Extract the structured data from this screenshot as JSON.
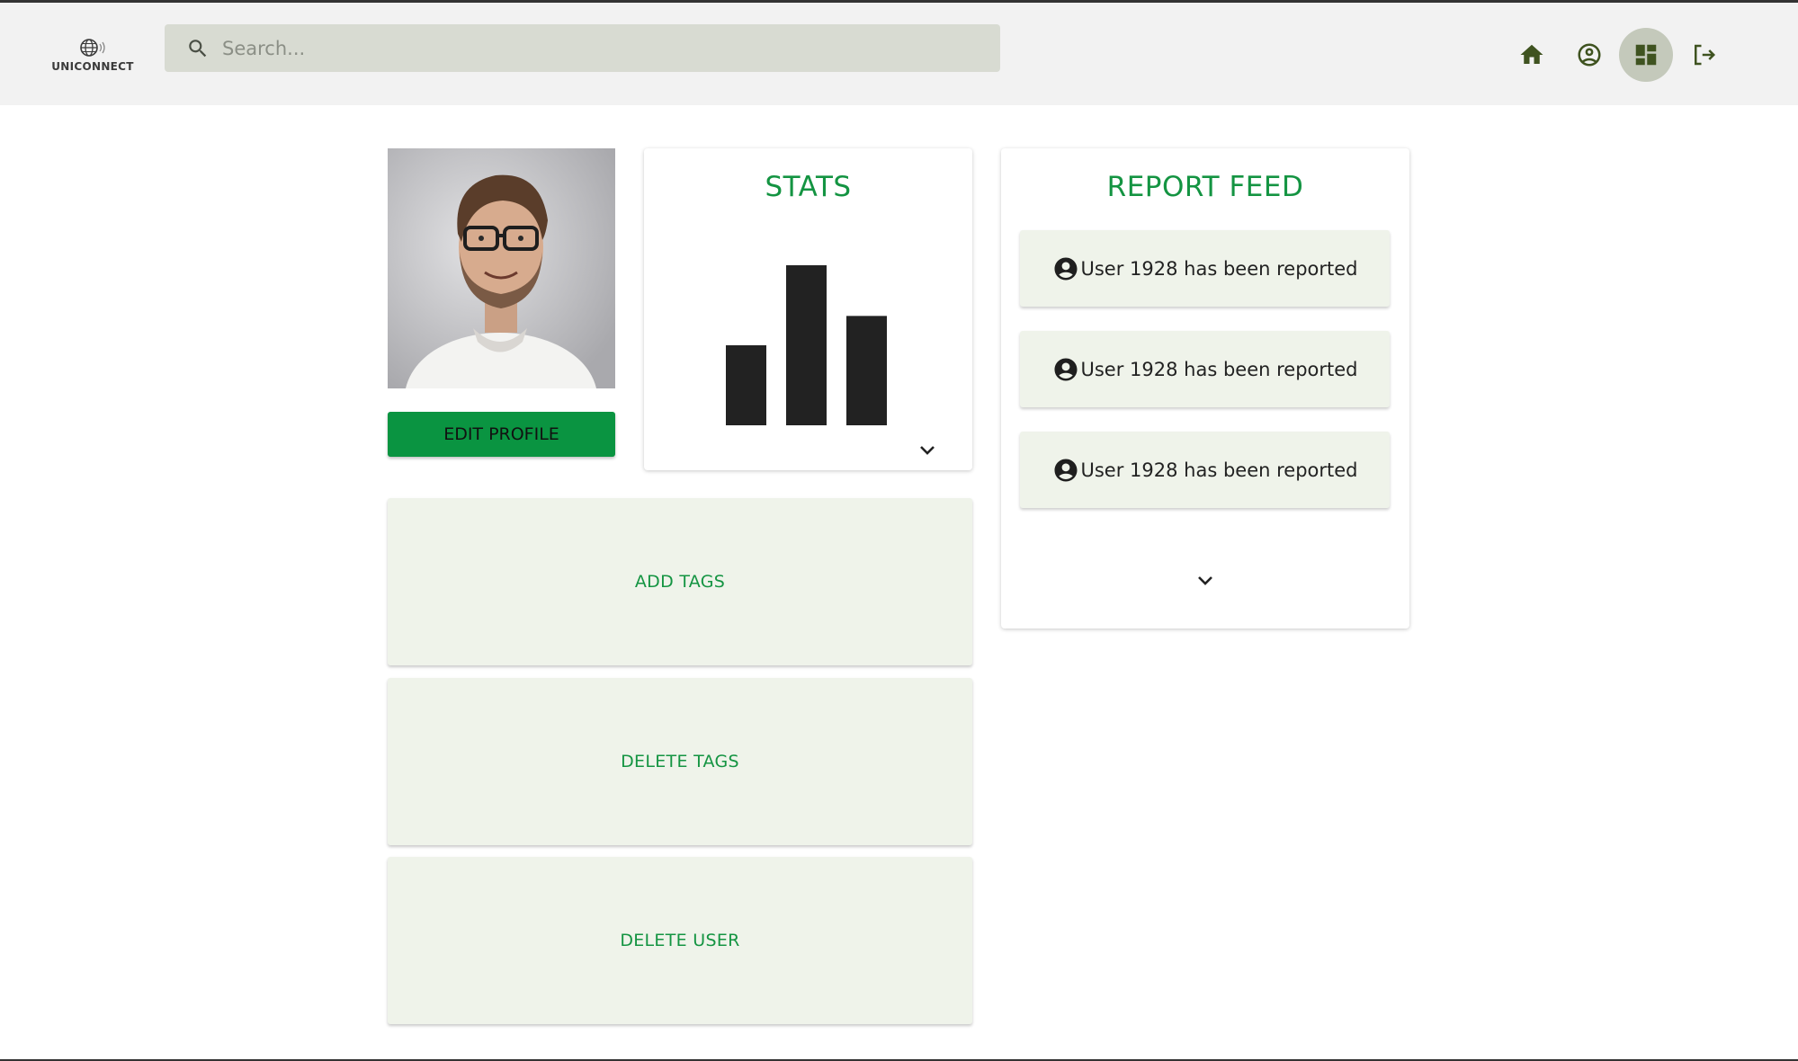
{
  "header": {
    "logo_text": "UNICONNECT",
    "search_placeholder": "Search...",
    "search_value": "",
    "nav": [
      {
        "name": "home-icon",
        "active": false
      },
      {
        "name": "account-icon",
        "active": false
      },
      {
        "name": "dashboard-icon",
        "active": true
      },
      {
        "name": "logout-icon",
        "active": false
      }
    ]
  },
  "profile": {
    "edit_label": "EDIT PROFILE"
  },
  "stats": {
    "title": "STATS",
    "chart_data": {
      "type": "bar",
      "categories": [
        "",
        "",
        ""
      ],
      "values": [
        3,
        6,
        4.1
      ],
      "title": "",
      "xlabel": "",
      "ylabel": "",
      "color": "#222222"
    }
  },
  "report_feed": {
    "title": "REPORT FEED",
    "items": [
      {
        "text": "User 1928 has been reported",
        "icon": "account-circle-icon"
      },
      {
        "text": "User 1928 has been reported",
        "icon": "account-circle-icon"
      },
      {
        "text": "User 1928 has been reported",
        "icon": "account-circle-icon"
      }
    ]
  },
  "actions": {
    "add_tags": "ADD TAGS",
    "delete_tags": "DELETE TAGS",
    "delete_user": "DELETE USER"
  },
  "colors": {
    "accent_green": "#149442",
    "button_green": "#0a9441",
    "panel_bg": "#eff3ea",
    "header_bg": "#f2f2f2",
    "icon_dark_green": "#3f5320"
  }
}
